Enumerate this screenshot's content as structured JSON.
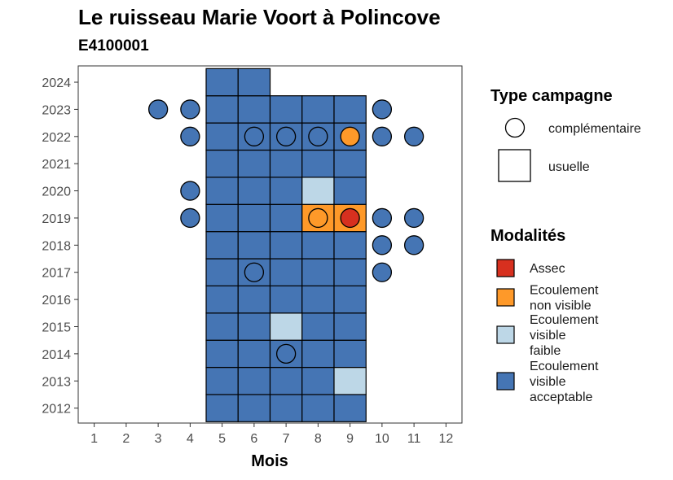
{
  "chart_data": {
    "type": "heatmap",
    "title": "Le ruisseau Marie Voort à Polincove",
    "subtitle": "E4100001",
    "xlabel": "Mois",
    "ylabel": "",
    "x_ticks": [
      "1",
      "2",
      "3",
      "4",
      "5",
      "6",
      "7",
      "8",
      "9",
      "10",
      "11",
      "12"
    ],
    "y_ticks": [
      "2012",
      "2013",
      "2014",
      "2015",
      "2016",
      "2017",
      "2018",
      "2019",
      "2020",
      "2021",
      "2022",
      "2023",
      "2024"
    ],
    "xlim": [
      0.5,
      12.5
    ],
    "ylim": [
      2011.45,
      2024.6
    ],
    "colors": {
      "Assec": "#d7301f",
      "Ecoulement non visible": "#fe9929",
      "Ecoulement visible faible": "#bdd7e7",
      "Ecoulement visible acceptable": "#4575b4"
    },
    "usuelle": [
      {
        "year": 2012,
        "month": 5,
        "modalite": "Ecoulement visible acceptable"
      },
      {
        "year": 2012,
        "month": 6,
        "modalite": "Ecoulement visible acceptable"
      },
      {
        "year": 2012,
        "month": 7,
        "modalite": "Ecoulement visible acceptable"
      },
      {
        "year": 2012,
        "month": 8,
        "modalite": "Ecoulement visible acceptable"
      },
      {
        "year": 2012,
        "month": 9,
        "modalite": "Ecoulement visible acceptable"
      },
      {
        "year": 2013,
        "month": 5,
        "modalite": "Ecoulement visible acceptable"
      },
      {
        "year": 2013,
        "month": 6,
        "modalite": "Ecoulement visible acceptable"
      },
      {
        "year": 2013,
        "month": 7,
        "modalite": "Ecoulement visible acceptable"
      },
      {
        "year": 2013,
        "month": 8,
        "modalite": "Ecoulement visible acceptable"
      },
      {
        "year": 2013,
        "month": 9,
        "modalite": "Ecoulement visible faible"
      },
      {
        "year": 2014,
        "month": 5,
        "modalite": "Ecoulement visible acceptable"
      },
      {
        "year": 2014,
        "month": 6,
        "modalite": "Ecoulement visible acceptable"
      },
      {
        "year": 2014,
        "month": 7,
        "modalite": "Ecoulement visible acceptable"
      },
      {
        "year": 2014,
        "month": 8,
        "modalite": "Ecoulement visible acceptable"
      },
      {
        "year": 2014,
        "month": 9,
        "modalite": "Ecoulement visible acceptable"
      },
      {
        "year": 2015,
        "month": 5,
        "modalite": "Ecoulement visible acceptable"
      },
      {
        "year": 2015,
        "month": 6,
        "modalite": "Ecoulement visible acceptable"
      },
      {
        "year": 2015,
        "month": 7,
        "modalite": "Ecoulement visible faible"
      },
      {
        "year": 2015,
        "month": 8,
        "modalite": "Ecoulement visible acceptable"
      },
      {
        "year": 2015,
        "month": 9,
        "modalite": "Ecoulement visible acceptable"
      },
      {
        "year": 2016,
        "month": 5,
        "modalite": "Ecoulement visible acceptable"
      },
      {
        "year": 2016,
        "month": 6,
        "modalite": "Ecoulement visible acceptable"
      },
      {
        "year": 2016,
        "month": 7,
        "modalite": "Ecoulement visible acceptable"
      },
      {
        "year": 2016,
        "month": 8,
        "modalite": "Ecoulement visible acceptable"
      },
      {
        "year": 2016,
        "month": 9,
        "modalite": "Ecoulement visible acceptable"
      },
      {
        "year": 2017,
        "month": 5,
        "modalite": "Ecoulement visible acceptable"
      },
      {
        "year": 2017,
        "month": 6,
        "modalite": "Ecoulement visible acceptable"
      },
      {
        "year": 2017,
        "month": 7,
        "modalite": "Ecoulement visible acceptable"
      },
      {
        "year": 2017,
        "month": 8,
        "modalite": "Ecoulement visible acceptable"
      },
      {
        "year": 2017,
        "month": 9,
        "modalite": "Ecoulement visible acceptable"
      },
      {
        "year": 2018,
        "month": 5,
        "modalite": "Ecoulement visible acceptable"
      },
      {
        "year": 2018,
        "month": 6,
        "modalite": "Ecoulement visible acceptable"
      },
      {
        "year": 2018,
        "month": 7,
        "modalite": "Ecoulement visible acceptable"
      },
      {
        "year": 2018,
        "month": 8,
        "modalite": "Ecoulement visible acceptable"
      },
      {
        "year": 2018,
        "month": 9,
        "modalite": "Ecoulement visible acceptable"
      },
      {
        "year": 2019,
        "month": 5,
        "modalite": "Ecoulement visible acceptable"
      },
      {
        "year": 2019,
        "month": 6,
        "modalite": "Ecoulement visible acceptable"
      },
      {
        "year": 2019,
        "month": 7,
        "modalite": "Ecoulement visible acceptable"
      },
      {
        "year": 2019,
        "month": 8,
        "modalite": "Ecoulement non visible"
      },
      {
        "year": 2019,
        "month": 9,
        "modalite": "Ecoulement non visible"
      },
      {
        "year": 2020,
        "month": 5,
        "modalite": "Ecoulement visible acceptable"
      },
      {
        "year": 2020,
        "month": 6,
        "modalite": "Ecoulement visible acceptable"
      },
      {
        "year": 2020,
        "month": 7,
        "modalite": "Ecoulement visible acceptable"
      },
      {
        "year": 2020,
        "month": 8,
        "modalite": "Ecoulement visible faible"
      },
      {
        "year": 2020,
        "month": 9,
        "modalite": "Ecoulement visible acceptable"
      },
      {
        "year": 2021,
        "month": 5,
        "modalite": "Ecoulement visible acceptable"
      },
      {
        "year": 2021,
        "month": 6,
        "modalite": "Ecoulement visible acceptable"
      },
      {
        "year": 2021,
        "month": 7,
        "modalite": "Ecoulement visible acceptable"
      },
      {
        "year": 2021,
        "month": 8,
        "modalite": "Ecoulement visible acceptable"
      },
      {
        "year": 2021,
        "month": 9,
        "modalite": "Ecoulement visible acceptable"
      },
      {
        "year": 2022,
        "month": 5,
        "modalite": "Ecoulement visible acceptable"
      },
      {
        "year": 2022,
        "month": 6,
        "modalite": "Ecoulement visible acceptable"
      },
      {
        "year": 2022,
        "month": 7,
        "modalite": "Ecoulement visible acceptable"
      },
      {
        "year": 2022,
        "month": 8,
        "modalite": "Ecoulement visible acceptable"
      },
      {
        "year": 2022,
        "month": 9,
        "modalite": "Ecoulement visible acceptable"
      },
      {
        "year": 2023,
        "month": 5,
        "modalite": "Ecoulement visible acceptable"
      },
      {
        "year": 2023,
        "month": 6,
        "modalite": "Ecoulement visible acceptable"
      },
      {
        "year": 2023,
        "month": 7,
        "modalite": "Ecoulement visible acceptable"
      },
      {
        "year": 2023,
        "month": 8,
        "modalite": "Ecoulement visible acceptable"
      },
      {
        "year": 2023,
        "month": 9,
        "modalite": "Ecoulement visible acceptable"
      },
      {
        "year": 2024,
        "month": 5,
        "modalite": "Ecoulement visible acceptable"
      },
      {
        "year": 2024,
        "month": 6,
        "modalite": "Ecoulement visible acceptable"
      }
    ],
    "complementaire": [
      {
        "year": 2014,
        "month": 7,
        "modalite": "Ecoulement visible acceptable"
      },
      {
        "year": 2017,
        "month": 6,
        "modalite": "Ecoulement visible acceptable"
      },
      {
        "year": 2017,
        "month": 10,
        "modalite": "Ecoulement visible acceptable"
      },
      {
        "year": 2018,
        "month": 10,
        "modalite": "Ecoulement visible acceptable"
      },
      {
        "year": 2018,
        "month": 11,
        "modalite": "Ecoulement visible acceptable"
      },
      {
        "year": 2019,
        "month": 4,
        "modalite": "Ecoulement visible acceptable"
      },
      {
        "year": 2019,
        "month": 8,
        "modalite": "Ecoulement non visible"
      },
      {
        "year": 2019,
        "month": 9,
        "modalite": "Assec"
      },
      {
        "year": 2019,
        "month": 10,
        "modalite": "Ecoulement visible acceptable"
      },
      {
        "year": 2019,
        "month": 11,
        "modalite": "Ecoulement visible acceptable"
      },
      {
        "year": 2020,
        "month": 4,
        "modalite": "Ecoulement visible acceptable"
      },
      {
        "year": 2022,
        "month": 4,
        "modalite": "Ecoulement visible acceptable"
      },
      {
        "year": 2022,
        "month": 6,
        "modalite": "Ecoulement visible acceptable"
      },
      {
        "year": 2022,
        "month": 7,
        "modalite": "Ecoulement visible acceptable"
      },
      {
        "year": 2022,
        "month": 8,
        "modalite": "Ecoulement visible acceptable"
      },
      {
        "year": 2022,
        "month": 9,
        "modalite": "Ecoulement non visible"
      },
      {
        "year": 2022,
        "month": 10,
        "modalite": "Ecoulement visible acceptable"
      },
      {
        "year": 2022,
        "month": 11,
        "modalite": "Ecoulement visible acceptable"
      },
      {
        "year": 2023,
        "month": 3,
        "modalite": "Ecoulement visible acceptable"
      },
      {
        "year": 2023,
        "month": 4,
        "modalite": "Ecoulement visible acceptable"
      },
      {
        "year": 2023,
        "month": 10,
        "modalite": "Ecoulement visible acceptable"
      }
    ],
    "legend": {
      "placement": "right",
      "type_title": "Type campagne",
      "type_items": [
        "complémentaire",
        "usuelle"
      ],
      "mod_title": "Modalités",
      "mod_items": [
        {
          "key": "Assec",
          "lines": [
            "Assec"
          ]
        },
        {
          "key": "Ecoulement non visible",
          "lines": [
            "Ecoulement",
            "non visible"
          ]
        },
        {
          "key": "Ecoulement visible faible",
          "lines": [
            "Ecoulement",
            "visible",
            "faible"
          ]
        },
        {
          "key": "Ecoulement visible acceptable",
          "lines": [
            "Ecoulement",
            "visible",
            "acceptable"
          ]
        }
      ]
    }
  }
}
